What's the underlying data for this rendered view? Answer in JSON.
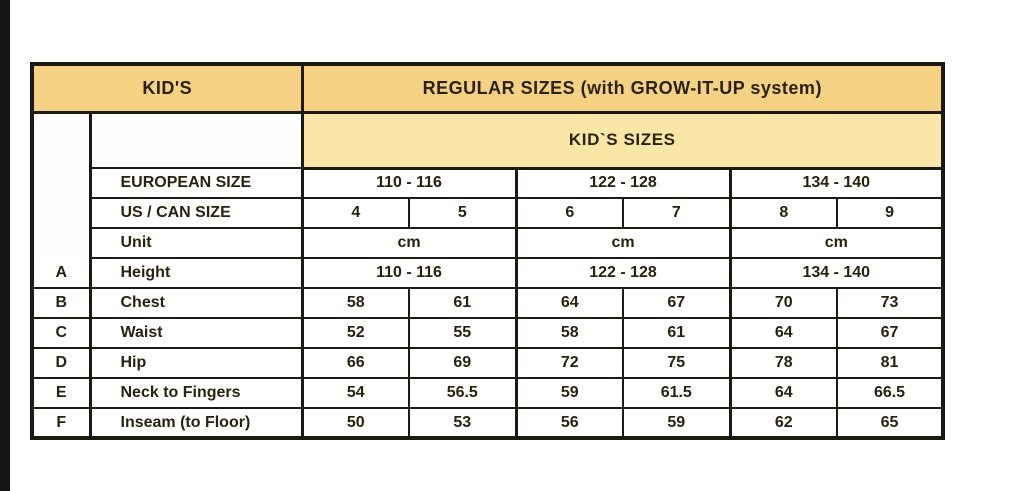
{
  "page": {
    "background": "#ffffff",
    "left_bar_color": "#151413"
  },
  "colors": {
    "header_band1_bg": "#f4d183",
    "header_band2_bg": "#fae6a6",
    "border": "#1d1a14",
    "text": "#29220f"
  },
  "table": {
    "header1": {
      "left": "KID'S",
      "right": "REGULAR SIZES (with GROW-IT-UP system)"
    },
    "header2": {
      "title": "KID`S SIZES"
    },
    "size_rows": [
      {
        "label": "EUROPEAN SIZE",
        "type": "range",
        "values": [
          "110 - 116",
          "122 - 128",
          "134 - 140"
        ]
      },
      {
        "label": "US / CAN SIZE",
        "type": "cells",
        "values": [
          "4",
          "5",
          "6",
          "7",
          "8",
          "9"
        ]
      },
      {
        "label": "Unit",
        "type": "range",
        "values": [
          "cm",
          "cm",
          "cm"
        ]
      }
    ],
    "measure_rows": [
      {
        "letter": "A",
        "label": "Height",
        "type": "range",
        "values": [
          "110 - 116",
          "122 - 128",
          "134 - 140"
        ]
      },
      {
        "letter": "B",
        "label": "Chest",
        "type": "cells",
        "values": [
          "58",
          "61",
          "64",
          "67",
          "70",
          "73"
        ]
      },
      {
        "letter": "C",
        "label": "Waist",
        "type": "cells",
        "values": [
          "52",
          "55",
          "58",
          "61",
          "64",
          "67"
        ]
      },
      {
        "letter": "D",
        "label": "Hip",
        "type": "cells",
        "values": [
          "66",
          "69",
          "72",
          "75",
          "78",
          "81"
        ]
      },
      {
        "letter": "E",
        "label": "Neck to Fingers",
        "type": "cells",
        "values": [
          "54",
          "56.5",
          "59",
          "61.5",
          "64",
          "66.5"
        ]
      },
      {
        "letter": "F",
        "label": "Inseam (to Floor)",
        "type": "cells",
        "values": [
          "50",
          "53",
          "56",
          "59",
          "62",
          "65"
        ]
      }
    ]
  }
}
